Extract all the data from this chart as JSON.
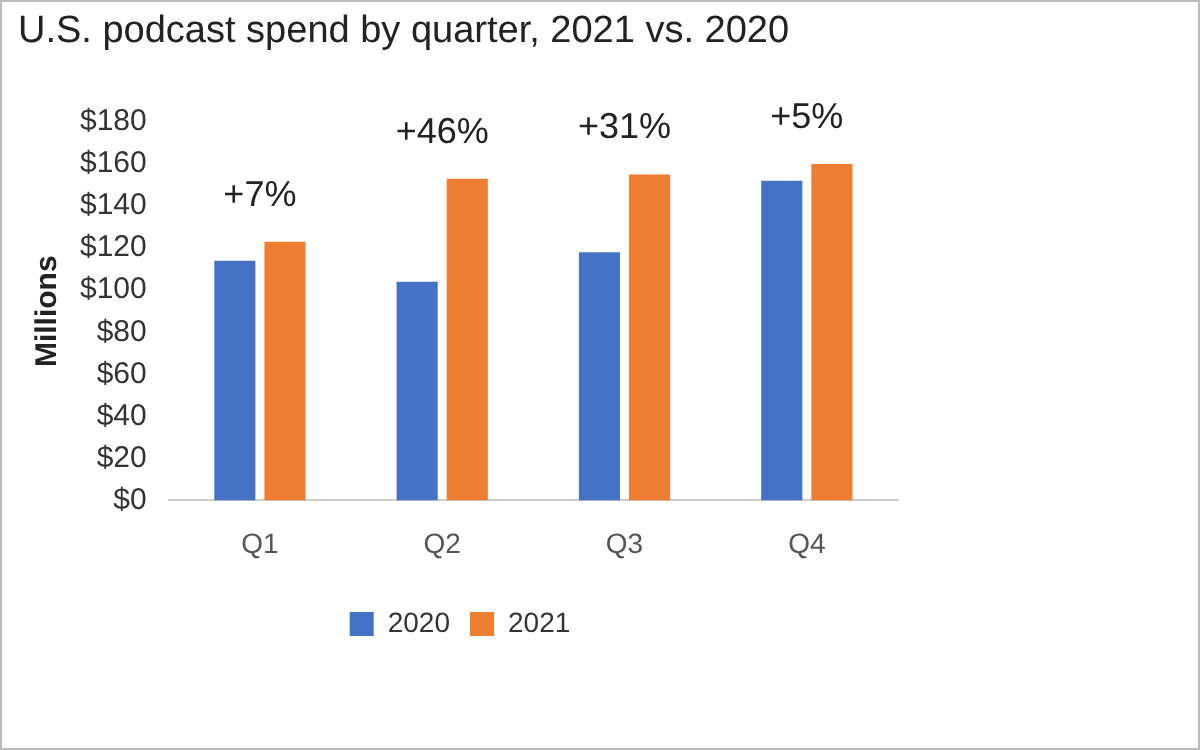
{
  "chart_data": {
    "type": "bar",
    "title": "U.S. podcast spend by quarter, 2021 vs. 2020",
    "ylabel": "Millions",
    "categories": [
      "Q1",
      "Q2",
      "Q3",
      "Q4"
    ],
    "series": [
      {
        "name": "2020",
        "color": "#4472c4",
        "values": [
          114,
          104,
          118,
          152
        ]
      },
      {
        "name": "2021",
        "color": "#ed7d31",
        "values": [
          123,
          153,
          155,
          160
        ]
      }
    ],
    "ylim": [
      0,
      180
    ],
    "yticks": [
      {
        "value": 0,
        "label": "$0"
      },
      {
        "value": 20,
        "label": "$20"
      },
      {
        "value": 40,
        "label": "$40"
      },
      {
        "value": 60,
        "label": "$60"
      },
      {
        "value": 80,
        "label": "$80"
      },
      {
        "value": 100,
        "label": "$100"
      },
      {
        "value": 120,
        "label": "$120"
      },
      {
        "value": 140,
        "label": "$140"
      },
      {
        "value": 160,
        "label": "$160"
      },
      {
        "value": 180,
        "label": "$180"
      }
    ],
    "annotations": [
      {
        "text": "+7%",
        "x": "Q1",
        "y": 123
      },
      {
        "text": "+46%",
        "x": "Q2",
        "y": 153
      },
      {
        "text": "+31%",
        "x": "Q3",
        "y": 155
      },
      {
        "text": "+5%",
        "x": "Q4",
        "y": 160
      }
    ],
    "grid": false,
    "legend": "bottom"
  }
}
